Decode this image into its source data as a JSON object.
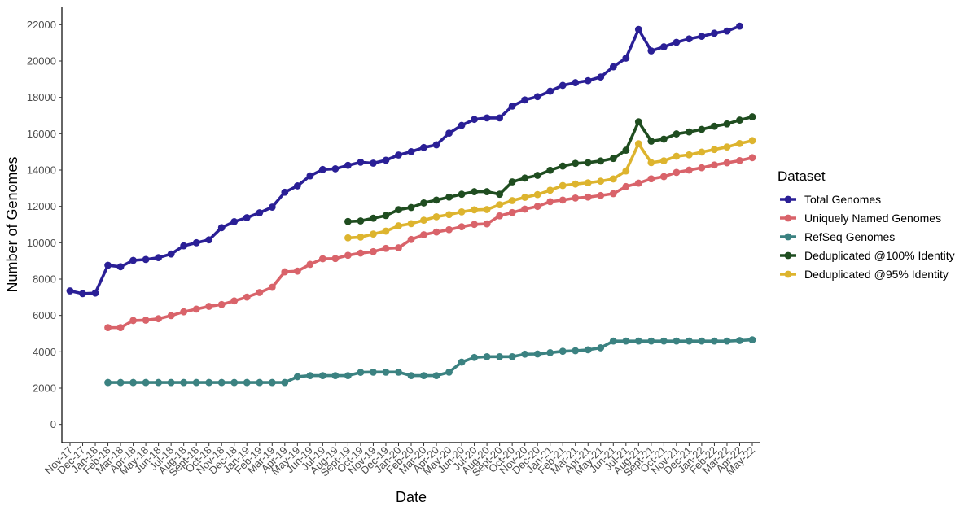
{
  "chart_data": {
    "type": "line",
    "xlabel": "Date",
    "ylabel": "Number of Genomes",
    "ylim": [
      -1000,
      23000
    ],
    "yticks": [
      0,
      2000,
      4000,
      6000,
      8000,
      10000,
      12000,
      14000,
      16000,
      18000,
      20000,
      22000
    ],
    "grid": false,
    "legend": {
      "title": "Dataset",
      "position": "right"
    },
    "x": [
      "Nov-17",
      "Dec-17",
      "Jan-18",
      "Feb-18",
      "Mar-18",
      "Apr-18",
      "May-18",
      "Jun-18",
      "Jul-18",
      "Aug-18",
      "Sept-18",
      "Oct-18",
      "Nov-18",
      "Dec-18",
      "Jan-19",
      "Feb-19",
      "Mar-19",
      "Apr-19",
      "May-19",
      "Jun-19",
      "Jul-19",
      "Aug-19",
      "Sept-19",
      "Oct-19",
      "Nov-19",
      "Dec-19",
      "Jan-20",
      "Feb-20",
      "Mar-20",
      "Apr-20",
      "May-20",
      "Jun-20",
      "Jul-20",
      "Aug-20",
      "Sept-20",
      "Oct-20",
      "Nov-20",
      "Dec-20",
      "Jan-21",
      "Feb-21",
      "Mar-21",
      "Apr-21",
      "May-21",
      "Jun-21",
      "Jul-21",
      "Aug-21",
      "Sept-21",
      "Oct-21",
      "Nov-21",
      "Dec-21",
      "Jan-22",
      "Feb-22",
      "Mar-22",
      "Apr-22",
      "May-22"
    ],
    "series": [
      {
        "name": "Total Genomes",
        "color": "#2a1f96",
        "values": [
          7350,
          7200,
          7230,
          8760,
          8680,
          9030,
          9080,
          9180,
          9380,
          9830,
          10000,
          10160,
          10830,
          11160,
          11380,
          11650,
          11960,
          12780,
          13130,
          13680,
          14030,
          14070,
          14260,
          14430,
          14380,
          14540,
          14830,
          15010,
          15240,
          15390,
          16030,
          16460,
          16790,
          16870,
          16870,
          17520,
          17860,
          18040,
          18340,
          18660,
          18810,
          18920,
          19120,
          19680,
          20160,
          21740,
          20560,
          20780,
          21030,
          21220,
          21360,
          21530,
          21650,
          21920,
          null
        ]
      },
      {
        "name": "Uniquely Named Genomes",
        "color": "#d9636a",
        "values": [
          null,
          null,
          null,
          5330,
          5330,
          5720,
          5740,
          5820,
          5990,
          6200,
          6350,
          6500,
          6600,
          6800,
          7010,
          7260,
          7550,
          8400,
          8440,
          8810,
          9120,
          9130,
          9310,
          9430,
          9510,
          9690,
          9720,
          10180,
          10440,
          10590,
          10720,
          10880,
          11010,
          11040,
          11480,
          11660,
          11850,
          12000,
          12260,
          12350,
          12460,
          12510,
          12600,
          12700,
          13090,
          13280,
          13520,
          13640,
          13870,
          14000,
          14130,
          14280,
          14400,
          14520,
          14680
        ]
      },
      {
        "name": "RefSeq Genomes",
        "color": "#3b8281",
        "values": [
          null,
          null,
          null,
          2310,
          2310,
          2310,
          2310,
          2310,
          2310,
          2310,
          2310,
          2310,
          2310,
          2310,
          2310,
          2310,
          2310,
          2310,
          2630,
          2690,
          2690,
          2690,
          2690,
          2870,
          2880,
          2880,
          2880,
          2690,
          2690,
          2690,
          2880,
          3430,
          3690,
          3730,
          3730,
          3730,
          3870,
          3880,
          3950,
          4030,
          4060,
          4110,
          4220,
          4590,
          4590,
          4590,
          4590,
          4590,
          4590,
          4590,
          4590,
          4590,
          4590,
          4620,
          4660
        ]
      },
      {
        "name": "Deduplicated @100% Identity",
        "color": "#1f4d20",
        "values": [
          null,
          null,
          null,
          null,
          null,
          null,
          null,
          null,
          null,
          null,
          null,
          null,
          null,
          null,
          null,
          null,
          null,
          null,
          null,
          null,
          null,
          null,
          11170,
          11200,
          11350,
          11500,
          11820,
          11940,
          12190,
          12350,
          12510,
          12670,
          12810,
          12810,
          12670,
          13350,
          13560,
          13710,
          13990,
          14220,
          14370,
          14410,
          14500,
          14640,
          15090,
          16660,
          15590,
          15700,
          15990,
          16100,
          16240,
          16410,
          16540,
          16750,
          16930
        ]
      },
      {
        "name": "Deduplicated @95% Identity",
        "color": "#ddb42e",
        "values": [
          null,
          null,
          null,
          null,
          null,
          null,
          null,
          null,
          null,
          null,
          null,
          null,
          null,
          null,
          null,
          null,
          null,
          null,
          null,
          null,
          null,
          null,
          10270,
          10310,
          10480,
          10640,
          10930,
          11050,
          11240,
          11430,
          11550,
          11700,
          11810,
          11830,
          12090,
          12320,
          12500,
          12650,
          12890,
          13150,
          13230,
          13300,
          13390,
          13510,
          13950,
          15450,
          14410,
          14510,
          14760,
          14840,
          14990,
          15130,
          15270,
          15460,
          15620
        ]
      }
    ]
  }
}
